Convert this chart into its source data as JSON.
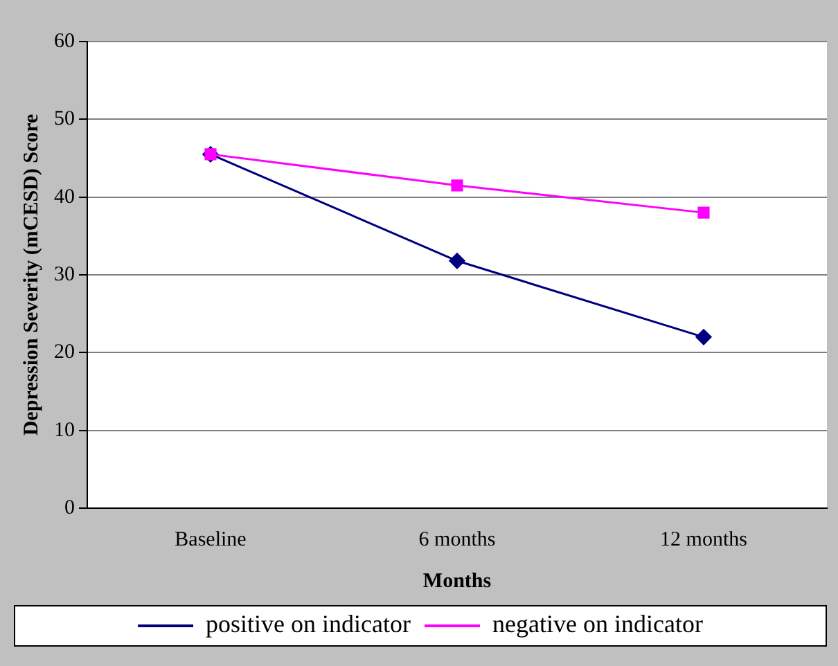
{
  "chart_data": {
    "type": "line",
    "xlabel": "Months",
    "ylabel": "Depression Severity (mCESD) Score",
    "categories": [
      "Baseline",
      "6 months",
      "12 months"
    ],
    "series": [
      {
        "name": "positive on indicator",
        "color": "#000080",
        "marker": "diamond",
        "values": [
          45.5,
          31.8,
          22
        ]
      },
      {
        "name": "negative on indicator",
        "color": "#ff00ff",
        "marker": "square",
        "values": [
          45.5,
          41.5,
          38
        ]
      }
    ],
    "ylim": [
      0,
      60
    ],
    "yticks": [
      0,
      10,
      20,
      30,
      40,
      50,
      60
    ],
    "grid": "y",
    "legend": "bottom"
  }
}
